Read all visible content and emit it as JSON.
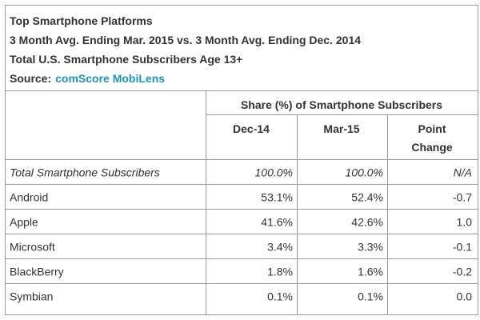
{
  "header": {
    "title": "Top Smartphone Platforms",
    "subtitle": "3 Month Avg. Ending Mar. 2015 vs. 3 Month Avg. Ending Dec. 2014",
    "subtitle2": "Total U.S. Smartphone Subscribers Age 13+",
    "source_label": "Source:",
    "source_name": "comScore MobiLens"
  },
  "table": {
    "group_header": "Share (%) of Smartphone Subscribers",
    "columns": [
      "Dec-14",
      "Mar-15",
      "Point",
      "Change"
    ]
  },
  "chart_data": {
    "type": "table",
    "title": "Top Smartphone Platforms",
    "columns": [
      "Dec-14",
      "Mar-15",
      "Point Change"
    ],
    "rows": [
      {
        "label": "Total Smartphone Subscribers",
        "values": [
          "100.0%",
          "100.0%",
          "N/A"
        ]
      },
      {
        "label": "Android",
        "values": [
          "53.1%",
          "52.4%",
          "-0.7"
        ]
      },
      {
        "label": "Apple",
        "values": [
          "41.6%",
          "42.6%",
          "1.0"
        ]
      },
      {
        "label": "Microsoft",
        "values": [
          "3.4%",
          "3.3%",
          "-0.1"
        ]
      },
      {
        "label": "BlackBerry",
        "values": [
          "1.8%",
          "1.6%",
          "-0.2"
        ]
      },
      {
        "label": "Symbian",
        "values": [
          "0.1%",
          "0.1%",
          "0.0"
        ]
      }
    ]
  }
}
